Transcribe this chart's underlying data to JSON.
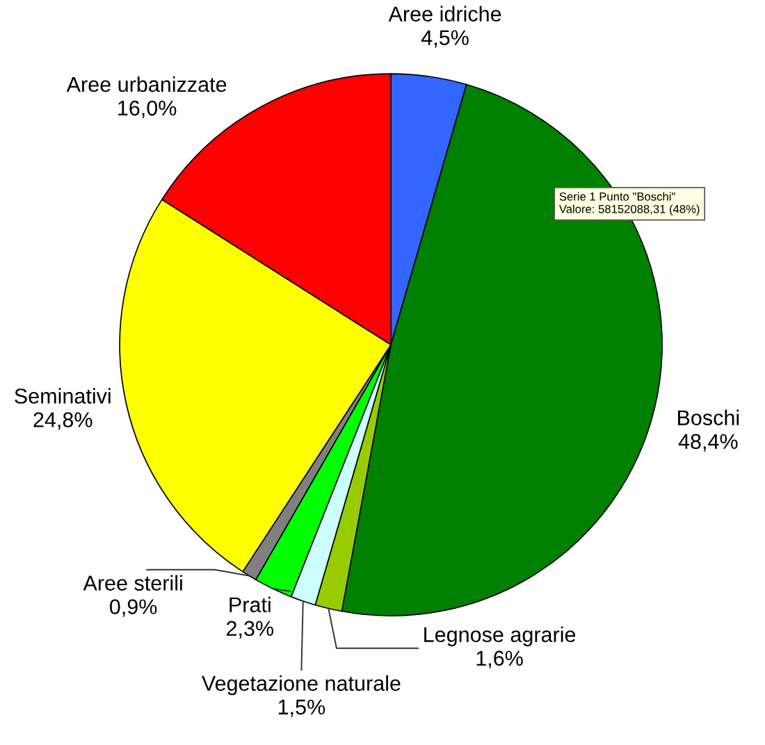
{
  "chart_data": {
    "type": "pie",
    "categories": [
      "Aree idriche",
      "Boschi",
      "Legnose agrarie",
      "Vegetazione naturale",
      "Prati",
      "Aree sterili",
      "Seminativi",
      "Aree urbanizzate"
    ],
    "values": [
      4.5,
      48.4,
      1.6,
      1.5,
      2.3,
      0.9,
      24.8,
      16.0
    ],
    "value_labels": [
      "4,5%",
      "48,4%",
      "1,6%",
      "1,5%",
      "2,3%",
      "0,9%",
      "24,8%",
      "16,0%"
    ],
    "colors": [
      "#3366ff",
      "#008000",
      "#99cc00",
      "#ccffff",
      "#00ff00",
      "#808080",
      "#ffff00",
      "#ff0000"
    ],
    "annotations": [
      "Serie 1 Punto \"Boschi\"\nValore: 58152088,31 (48%)"
    ],
    "legend": false
  }
}
